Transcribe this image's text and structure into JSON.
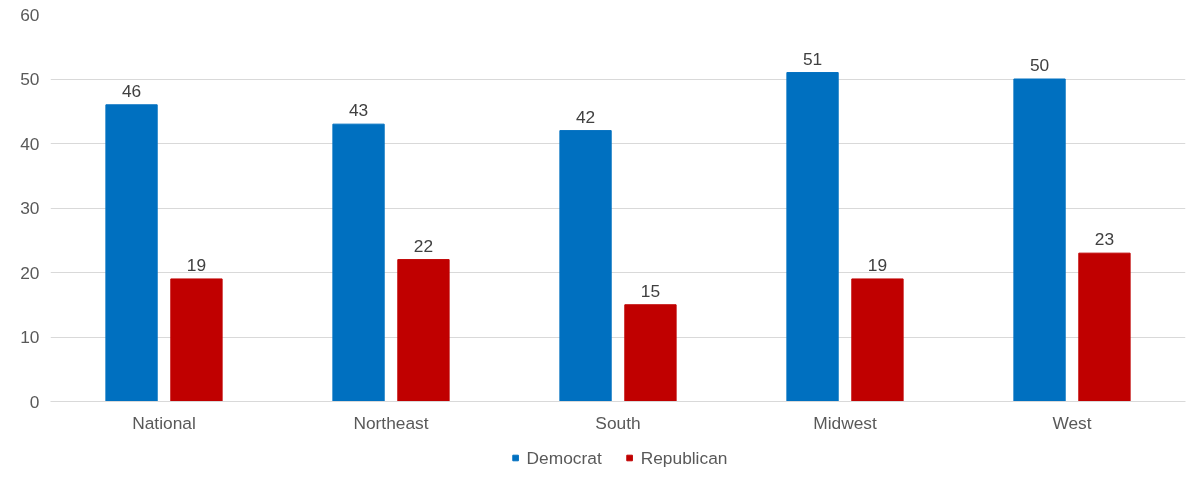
{
  "chart_data": {
    "type": "bar",
    "categories": [
      "National",
      "Northeast",
      "South",
      "Midwest",
      "West"
    ],
    "series": [
      {
        "name": "Democrat",
        "color": "#0070c0",
        "values": [
          46,
          43,
          42,
          51,
          50
        ]
      },
      {
        "name": "Republican",
        "color": "#c00000",
        "values": [
          19,
          22,
          15,
          19,
          23
        ]
      }
    ],
    "ylim": [
      0,
      60
    ],
    "yticks": [
      0,
      10,
      20,
      30,
      40,
      50,
      60
    ],
    "grid": "y",
    "legend": "bottom",
    "data_labels": true
  }
}
